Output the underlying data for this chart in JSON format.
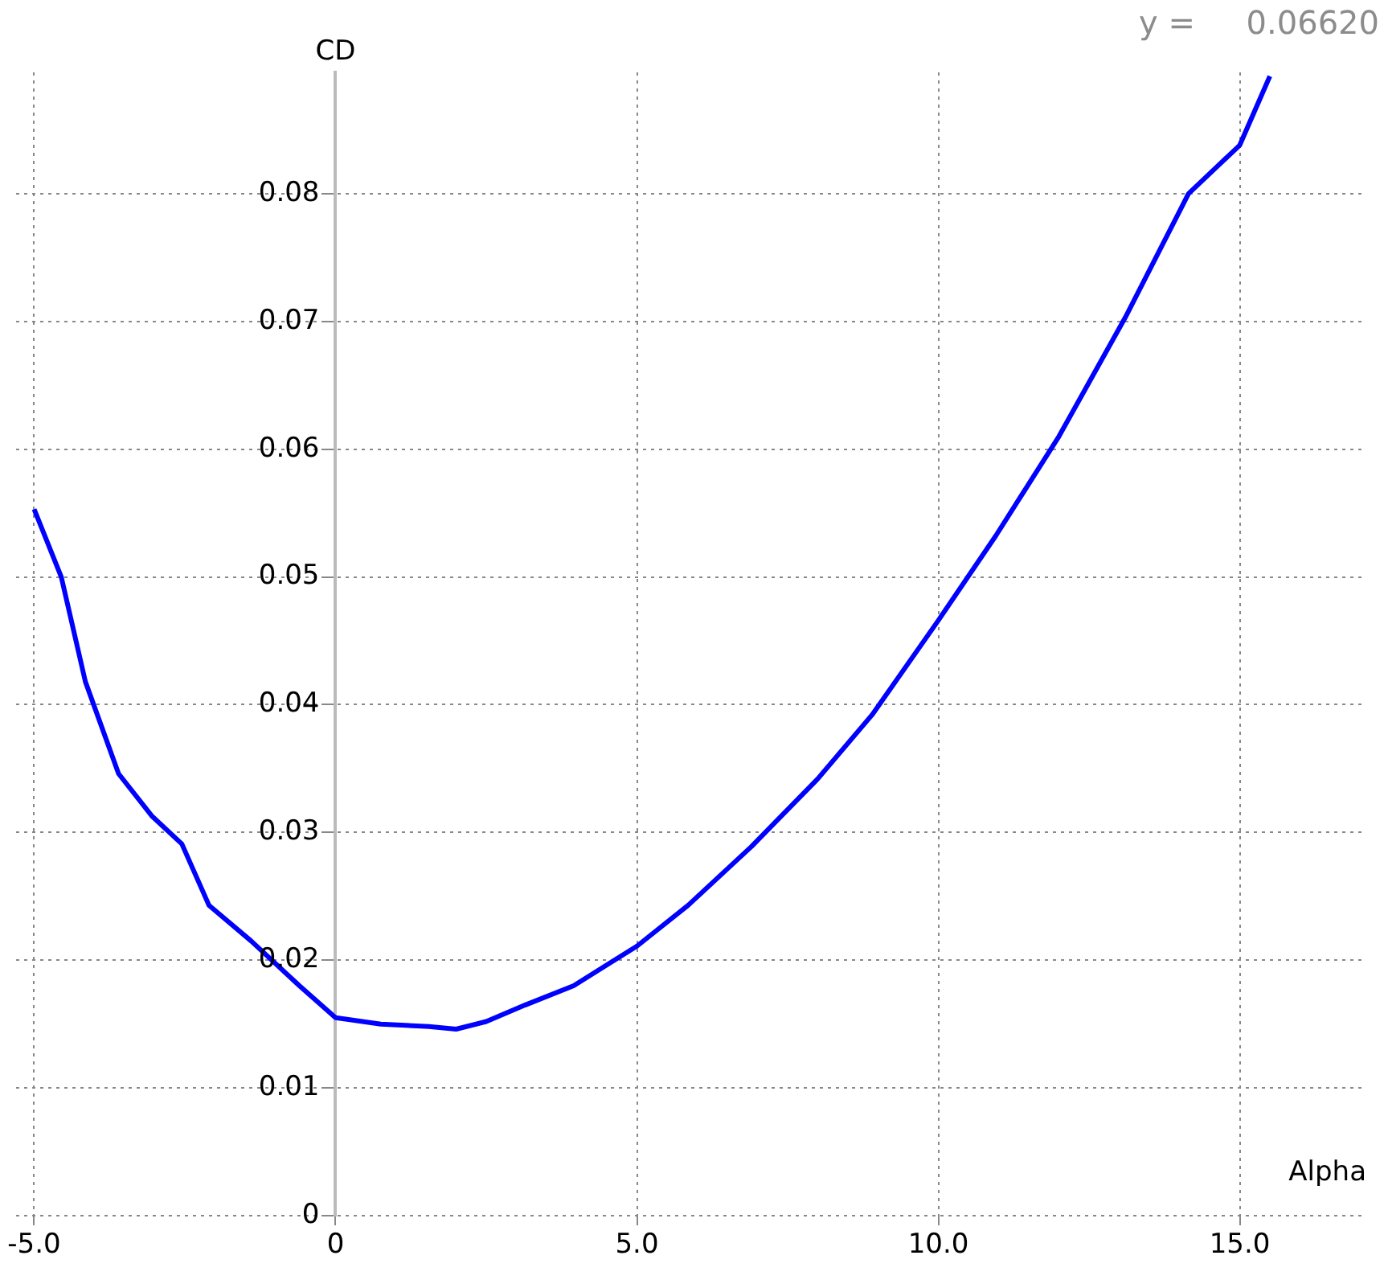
{
  "chart_data": {
    "type": "line",
    "xlabel": "Alpha",
    "ylabel": "CD",
    "annotations": [
      "y =     0.06620"
    ],
    "series": [
      {
        "color": "#0000ff",
        "x": [
          -5.0,
          -4.55,
          -4.15,
          -3.6,
          -3.05,
          -2.55,
          -2.1,
          -1.4,
          -0.6,
          0,
          0.75,
          1.55,
          2.0,
          2.5,
          3.15,
          3.95,
          5.0,
          5.85,
          6.9,
          8.0,
          8.9,
          10.0,
          10.95,
          12.0,
          13.1,
          14.15,
          15.0,
          15.5
        ],
        "values": [
          0.0553,
          0.05,
          0.0418,
          0.0346,
          0.0313,
          0.0291,
          0.0243,
          0.0215,
          0.018,
          0.0155,
          0.015,
          0.0148,
          0.0146,
          0.0152,
          0.0165,
          0.018,
          0.0211,
          0.0243,
          0.0289,
          0.0342,
          0.0392,
          0.0466,
          0.0532,
          0.061,
          0.0703,
          0.08,
          0.0838,
          0.0892
        ]
      }
    ],
    "xlim": [
      -5.3,
      17.1
    ],
    "ylim": [
      0,
      0.0895
    ],
    "xticks": [
      {
        "value": -5,
        "label": "-5.0"
      },
      0,
      {
        "value": 5,
        "label": "5.0"
      },
      {
        "value": 10,
        "label": "10.0"
      },
      {
        "value": 15,
        "label": "15.0"
      }
    ],
    "yticks": [
      0,
      0.01,
      0.02,
      0.03,
      0.04,
      0.05,
      0.06,
      0.07,
      0.08
    ],
    "grid": true,
    "legend": false,
    "marker": "none",
    "line_style": "solid"
  }
}
